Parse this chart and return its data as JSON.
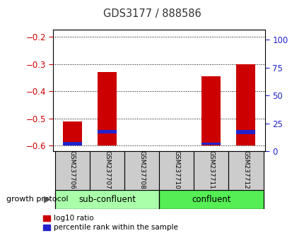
{
  "title": "GDS3177 / 888586",
  "categories": [
    "GSM237706",
    "GSM237707",
    "GSM237708",
    "GSM237710",
    "GSM237711",
    "GSM237712"
  ],
  "red_top": [
    -0.51,
    -0.33,
    -0.598,
    -0.598,
    -0.345,
    -0.3
  ],
  "red_bottom": [
    -0.6,
    -0.6,
    -0.6,
    -0.6,
    -0.6,
    -0.6
  ],
  "blue_top": [
    -0.587,
    -0.542,
    -0.6,
    -0.6,
    -0.589,
    -0.543
  ],
  "blue_bottom": [
    -0.598,
    -0.556,
    -0.6,
    -0.6,
    -0.597,
    -0.557
  ],
  "ylim_left": [
    -0.62,
    -0.175
  ],
  "ylim_right": [
    0,
    108.75
  ],
  "yticks_left": [
    -0.6,
    -0.5,
    -0.4,
    -0.3,
    -0.2
  ],
  "yticks_right": [
    0,
    25,
    50,
    75,
    100
  ],
  "bar_width": 0.55,
  "red_color": "#cc0000",
  "blue_color": "#2222cc",
  "group1_label": "sub-confluent",
  "group2_label": "confluent",
  "group1_color": "#aaffaa",
  "group2_color": "#55ee55",
  "xlabel_label": "growth protocol",
  "legend_red": "log10 ratio",
  "legend_blue": "percentile rank within the sample",
  "title_color": "#333333",
  "left_tick_color": "#cc0000",
  "right_tick_color": "#2222cc",
  "label_bg_color": "#cccccc",
  "n": 6
}
